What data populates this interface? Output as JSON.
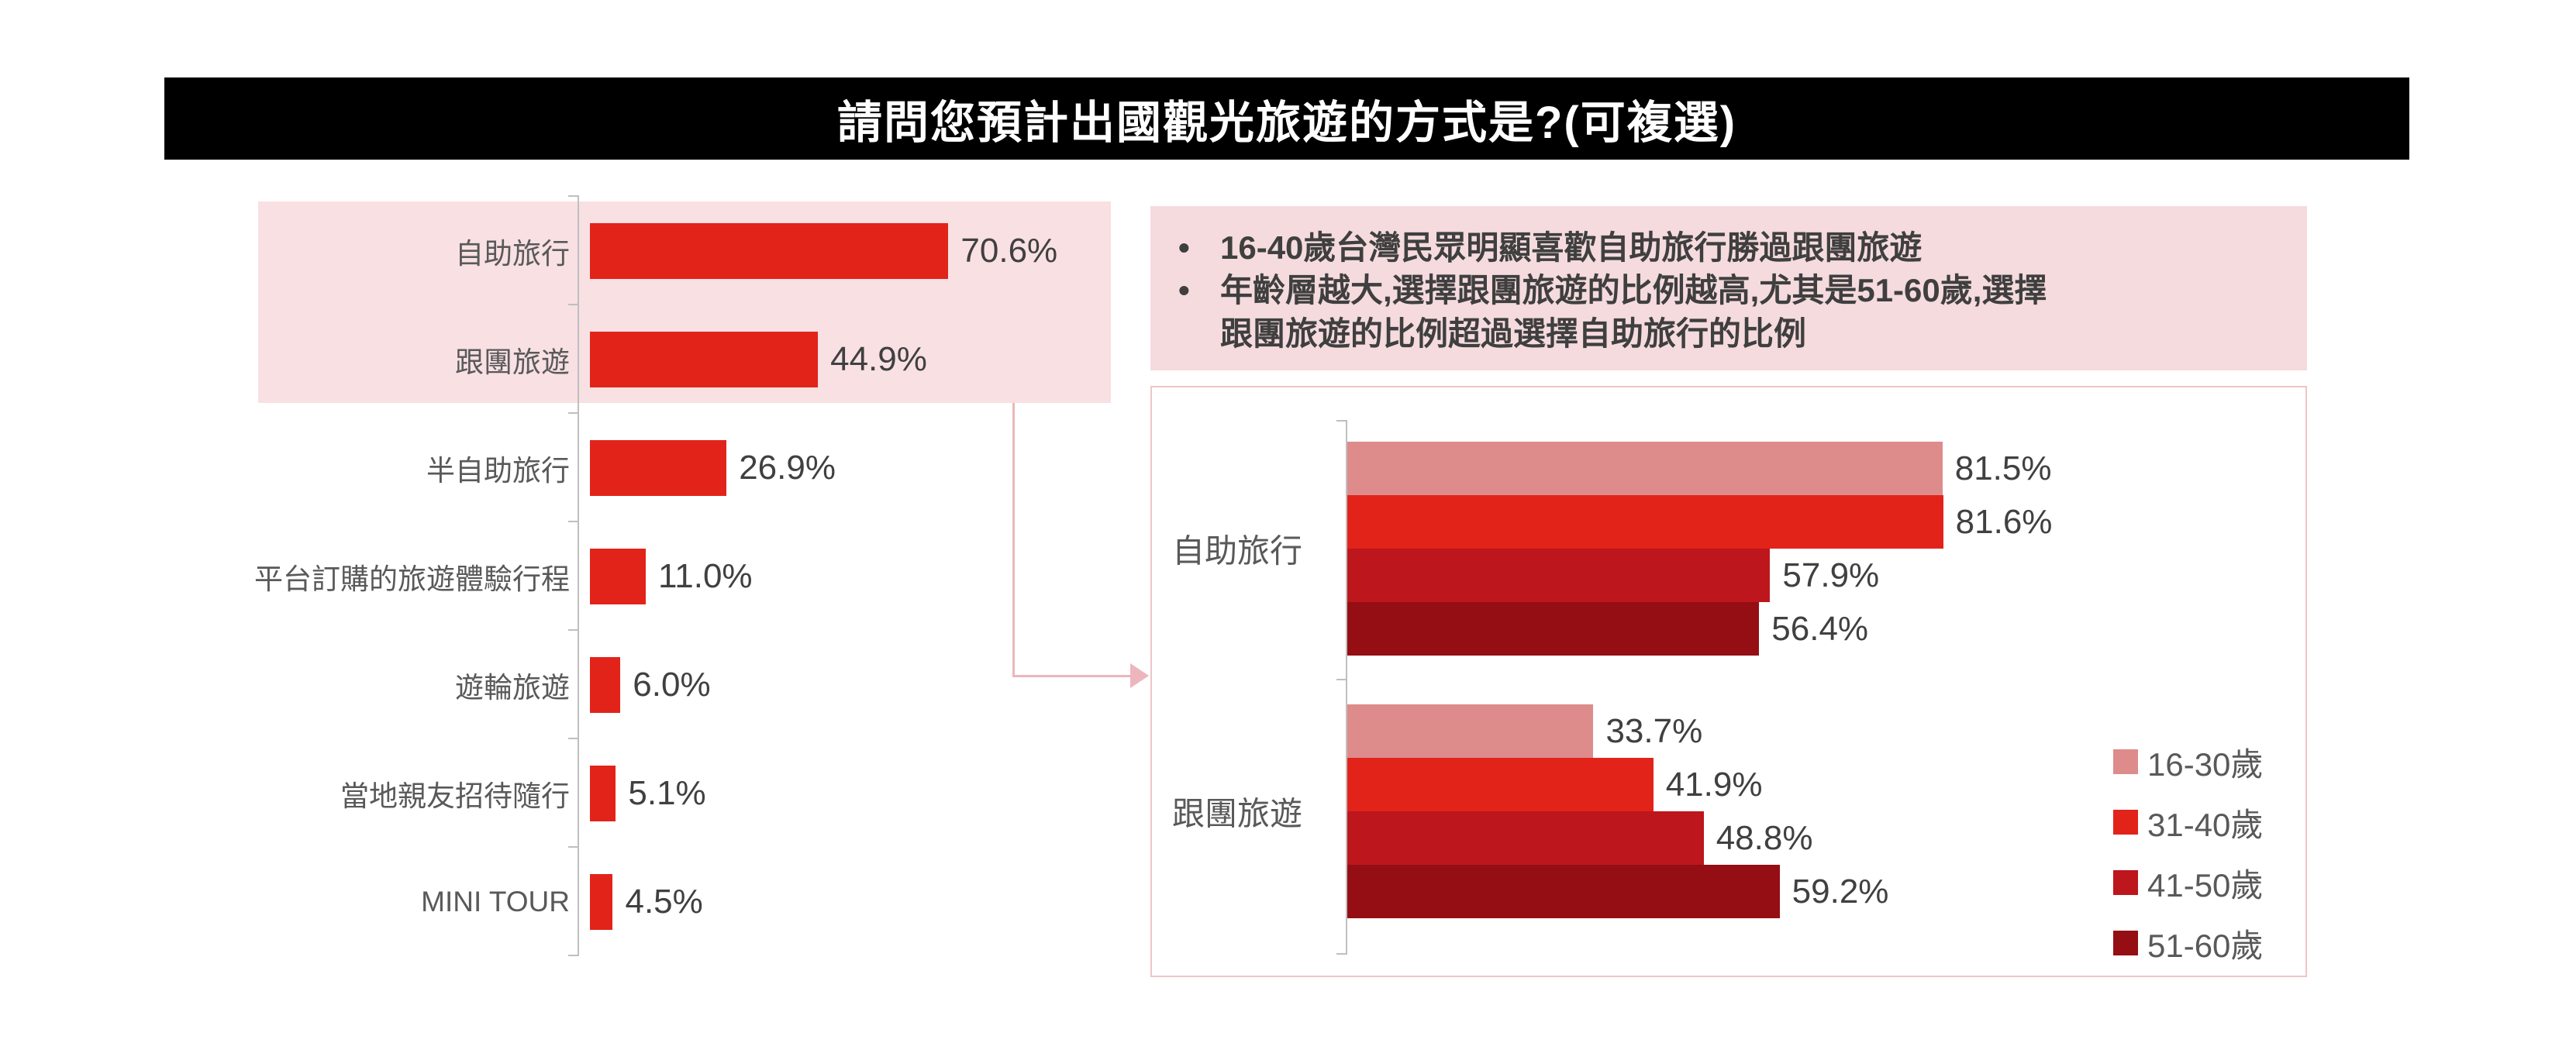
{
  "title": "請問您預計出國觀光旅遊的方式是?(可複選)",
  "notes": {
    "bullets": [
      "16-40歲台灣民眾明顯喜歡自助旅行勝過跟團旅遊",
      "年齡層越大,選擇跟團旅遊的比例越高,尤其是51-60歲,選擇跟團旅遊的比例超過選擇自助旅行的比例"
    ]
  },
  "colors": {
    "main_red": "#E2231A",
    "age_16_30": "#DE8B8B",
    "age_31_40": "#E2231A",
    "age_41_50": "#BD161C",
    "age_51_60": "#940E13",
    "highlight_band_pink": "#F8E0E3",
    "note_box_pink": "#F5DBDE",
    "detail_box_border": "#F0C4C9",
    "connector_pink": "#ECB6BC",
    "axis_gray": "#BFBFBF",
    "category_text": "#595959",
    "value_text": "#404040",
    "title_bg": "#000000",
    "title_text": "#FFFFFF"
  },
  "chart_data": [
    {
      "type": "bar",
      "orientation": "horizontal",
      "title": "",
      "categories": [
        "自助旅行",
        "跟團旅遊",
        "半自助旅行",
        "平台訂購的旅遊體驗行程",
        "遊輪旅遊",
        "當地親友招待隨行",
        "MINI TOUR"
      ],
      "values": [
        70.6,
        44.9,
        26.9,
        11.0,
        6.0,
        5.1,
        4.5
      ],
      "value_labels": [
        "70.6%",
        "44.9%",
        "26.9%",
        "11.0%",
        "6.0%",
        "5.1%",
        "4.5%"
      ],
      "highlighted_categories": [
        "自助旅行",
        "跟團旅遊"
      ],
      "xlim": [
        0,
        100
      ],
      "grid": false,
      "legend_position": "none"
    },
    {
      "type": "bar",
      "orientation": "horizontal",
      "title": "",
      "categories": [
        "自助旅行",
        "跟團旅遊"
      ],
      "series": [
        {
          "name": "16-30歲",
          "values": [
            81.5,
            33.7
          ],
          "labels": [
            "81.5%",
            "33.7%"
          ]
        },
        {
          "name": "31-40歲",
          "values": [
            81.6,
            41.9
          ],
          "labels": [
            "81.6%",
            "41.9%"
          ]
        },
        {
          "name": "41-50歲",
          "values": [
            57.9,
            48.8
          ],
          "labels": [
            "57.9%",
            "48.8%"
          ]
        },
        {
          "name": "51-60歲",
          "values": [
            56.4,
            59.2
          ],
          "labels": [
            "56.4%",
            "59.2%"
          ]
        }
      ],
      "legend_position": "right",
      "xlim": [
        0,
        100
      ],
      "grid": false
    }
  ]
}
